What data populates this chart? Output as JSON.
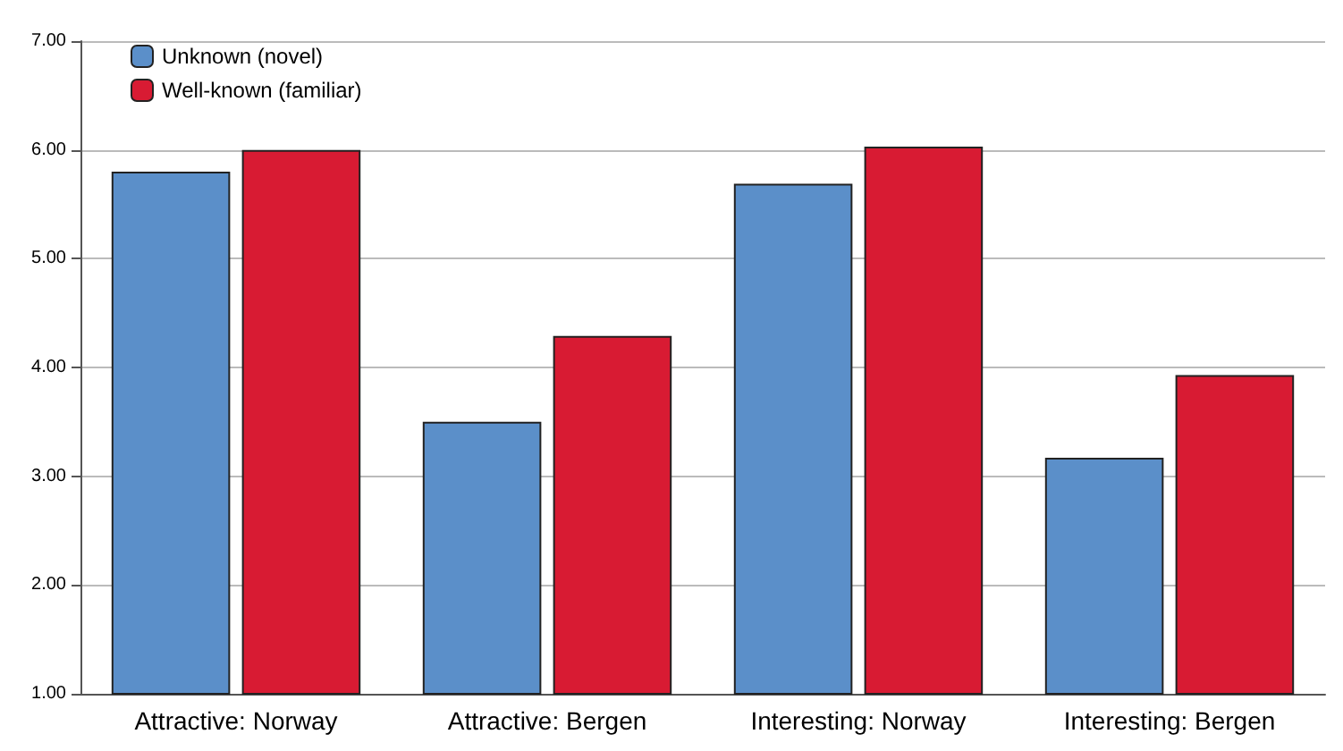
{
  "chart_data": {
    "type": "bar",
    "categories": [
      "Attractive: Norway",
      "Attractive: Bergen",
      "Interesting: Norway",
      "Interesting: Bergen"
    ],
    "series": [
      {
        "name": "Unknown (novel)",
        "color": "#5b8fc9",
        "values": [
          5.8,
          3.5,
          5.69,
          3.17
        ]
      },
      {
        "name": "Well-known (familiar)",
        "color": "#d81b33",
        "values": [
          6.0,
          4.29,
          6.03,
          3.93
        ]
      }
    ],
    "ylim": [
      1,
      7
    ],
    "yticks": [
      {
        "value": 1,
        "label": "1.00"
      },
      {
        "value": 2,
        "label": "2.00"
      },
      {
        "value": 3,
        "label": "3.00"
      },
      {
        "value": 4,
        "label": "4.00"
      },
      {
        "value": 5,
        "label": "5.00"
      },
      {
        "value": 6,
        "label": "6.00"
      },
      {
        "value": 7,
        "label": "7.00"
      }
    ],
    "grid": "y",
    "legend": "top left"
  }
}
